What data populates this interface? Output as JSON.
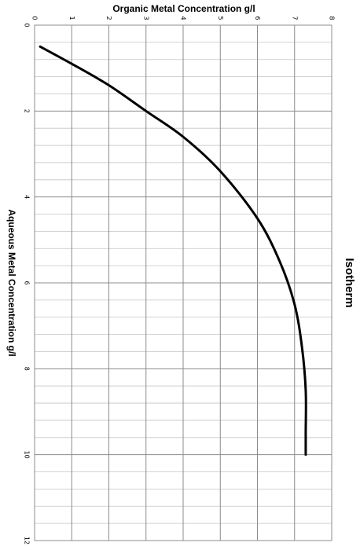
{
  "chart_data": {
    "type": "line",
    "title": "Isotherm",
    "xlabel": "Aqueous Metal Concentration g/l",
    "ylabel": "Organic Metal Concentration g/l",
    "xlim": [
      0,
      12
    ],
    "ylim": [
      0,
      8
    ],
    "x_ticks": [
      "0",
      "2",
      "4",
      "6",
      "8",
      "10",
      "12"
    ],
    "y_ticks": [
      "0",
      "1",
      "2",
      "3",
      "4",
      "5",
      "6",
      "7",
      "8"
    ],
    "grid": true,
    "orientation": "rotated-90-clockwise",
    "series": [
      {
        "color": "#000000",
        "points": [
          [
            0.5,
            0.15
          ],
          [
            0.9,
            1.0
          ],
          [
            1.4,
            2.0
          ],
          [
            2.0,
            3.0
          ],
          [
            2.6,
            4.0
          ],
          [
            3.4,
            5.0
          ],
          [
            4.5,
            6.0
          ],
          [
            5.5,
            6.6
          ],
          [
            6.5,
            7.0
          ],
          [
            7.5,
            7.2
          ],
          [
            8.5,
            7.3
          ],
          [
            9.5,
            7.3
          ],
          [
            10.0,
            7.3
          ]
        ]
      }
    ]
  }
}
